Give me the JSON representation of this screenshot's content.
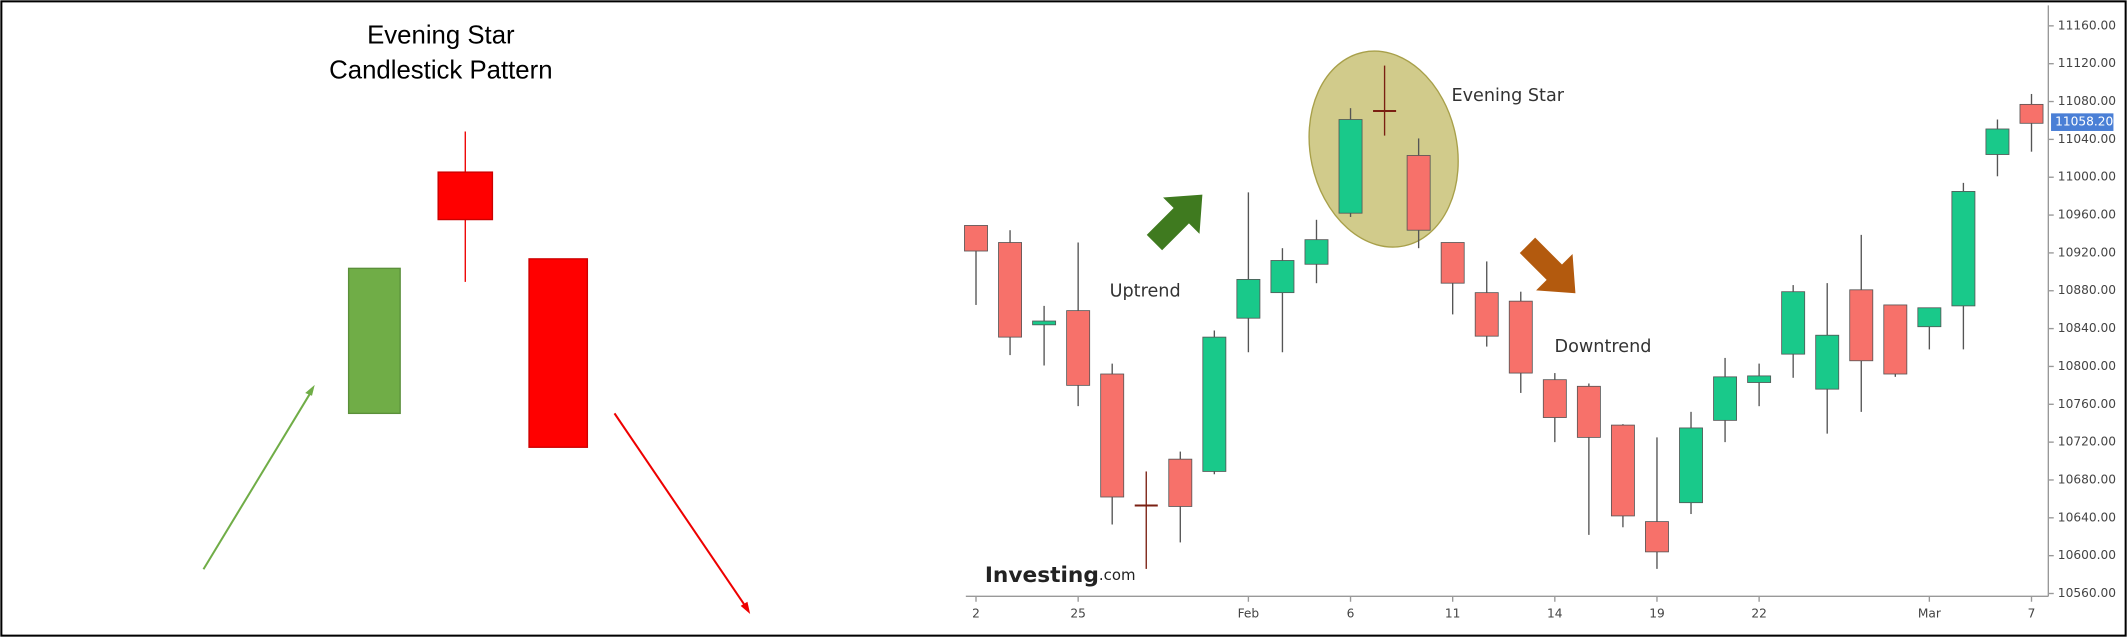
{
  "illustration": {
    "title": [
      "Evening Star",
      "Candlestick Pattern"
    ]
  },
  "chart_data": {
    "type": "candlestick",
    "categories": [
      "2",
      null,
      null,
      "25",
      null,
      null,
      null,
      null,
      "Feb",
      null,
      null,
      "6",
      null,
      null,
      "11",
      null,
      null,
      "14",
      null,
      null,
      "19",
      null,
      null,
      "22",
      null,
      null,
      null,
      null,
      "Mar",
      null,
      null,
      "7"
    ],
    "series": [
      {
        "up_color": "#19c98a",
        "down_color": "#f7716a",
        "doji_color": "#7a1f12",
        "open": [
          10949,
          10931,
          10844,
          10859,
          10792,
          10653,
          10702,
          10689,
          10851,
          10878,
          10908,
          10962,
          11070,
          11023,
          10931,
          10878,
          10869,
          10786,
          10779,
          10738,
          10636,
          10656,
          10743,
          10783,
          10813,
          10776,
          10881,
          10865,
          10842,
          10864,
          11024,
          11077
        ],
        "high": [
          10949,
          10944,
          10864,
          10931,
          10803,
          10689,
          10710,
          10838,
          10984,
          10925,
          10955,
          11073,
          11118,
          11041,
          10931,
          10911,
          10879,
          10793,
          10782,
          10739,
          10725,
          10752,
          10809,
          10803,
          10886,
          10888,
          10939,
          10865,
          10862,
          10994,
          11061,
          11088
        ],
        "low": [
          10865,
          10812,
          10801,
          10758,
          10633,
          10586,
          10614,
          10686,
          10815,
          10815,
          10888,
          10958,
          11044,
          10925,
          10855,
          10821,
          10772,
          10720,
          10622,
          10630,
          10586,
          10644,
          10720,
          10758,
          10788,
          10729,
          10752,
          10789,
          10818,
          10818,
          11001,
          11027
        ],
        "close": [
          10922,
          10831,
          10848,
          10780,
          10662,
          10653,
          10652,
          10831,
          10892,
          10912,
          10934,
          11061,
          11070,
          10944,
          10888,
          10832,
          10793,
          10746,
          10725,
          10642,
          10604,
          10735,
          10789,
          10790,
          10879,
          10833,
          10806,
          10792,
          10862,
          10985,
          11051,
          11057
        ]
      }
    ],
    "ylim": [
      10557,
      11173
    ],
    "yticks": [
      {
        "value": 10560,
        "label": "10560.00"
      },
      {
        "value": 10600,
        "label": "10600.00"
      },
      {
        "value": 10640,
        "label": "10640.00"
      },
      {
        "value": 10680,
        "label": "10680.00"
      },
      {
        "value": 10720,
        "label": "10720.00"
      },
      {
        "value": 10760,
        "label": "10760.00"
      },
      {
        "value": 10800,
        "label": "10800.00"
      },
      {
        "value": 10840,
        "label": "10840.00"
      },
      {
        "value": 10880,
        "label": "10880.00"
      },
      {
        "value": 10920,
        "label": "10920.00"
      },
      {
        "value": 10960,
        "label": "10960.00"
      },
      {
        "value": 11000,
        "label": "11000.00"
      },
      {
        "value": 11040,
        "label": "11040.00"
      },
      {
        "value": 11080,
        "label": "11080.00"
      },
      {
        "value": 11120,
        "label": "11120.00"
      },
      {
        "value": 11160,
        "label": "11160.00"
      }
    ],
    "last_price": {
      "value": 11058.2,
      "label": "11058.20"
    },
    "annotations": {
      "uptrend": "Uptrend",
      "downtrend": "Downtrend",
      "evening_star": "Evening Star"
    },
    "logo": "Investing",
    "logo_suffix": ".com"
  }
}
